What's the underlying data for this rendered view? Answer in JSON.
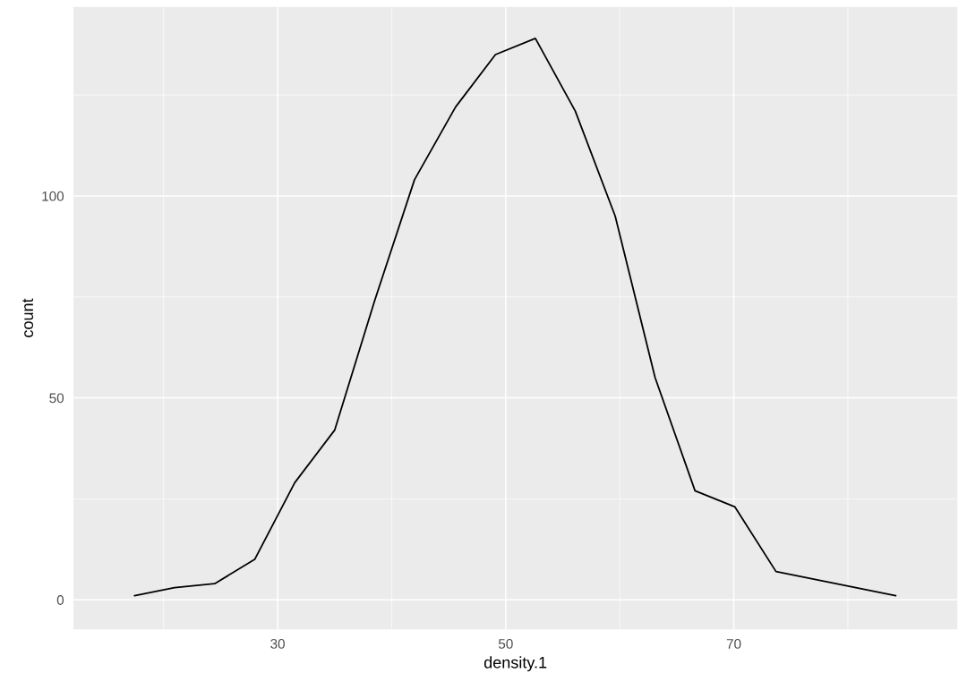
{
  "chart_data": {
    "type": "line",
    "xlabel": "density.1",
    "ylabel": "count",
    "x": [
      17.45,
      20.96,
      24.48,
      27.99,
      31.5,
      35.0,
      38.5,
      42.0,
      45.6,
      49.1,
      52.6,
      56.1,
      59.6,
      63.1,
      66.6,
      70.1,
      73.7,
      77.2,
      80.7,
      84.2
    ],
    "series": [
      {
        "color": "#000000",
        "values": [
          1,
          3,
          4,
          10,
          29,
          42,
          74,
          104,
          122,
          135,
          139,
          121,
          95,
          55,
          27,
          23,
          7,
          5,
          3,
          1
        ]
      }
    ],
    "xlim": [
      12.1,
      89.6
    ],
    "ylim": [
      -7.3,
      146.8
    ],
    "xticks": [
      {
        "value": 20,
        "label": null
      },
      30,
      {
        "value": 40,
        "label": null
      },
      50,
      {
        "value": 60,
        "label": null
      },
      70,
      {
        "value": 80,
        "label": null
      }
    ],
    "yticks": [
      0,
      {
        "value": 25,
        "label": null
      },
      50,
      {
        "value": 75,
        "label": null
      },
      100,
      {
        "value": 125,
        "label": null
      }
    ],
    "grid": true,
    "marker": "none",
    "line_style": "solid",
    "legend": false
  }
}
